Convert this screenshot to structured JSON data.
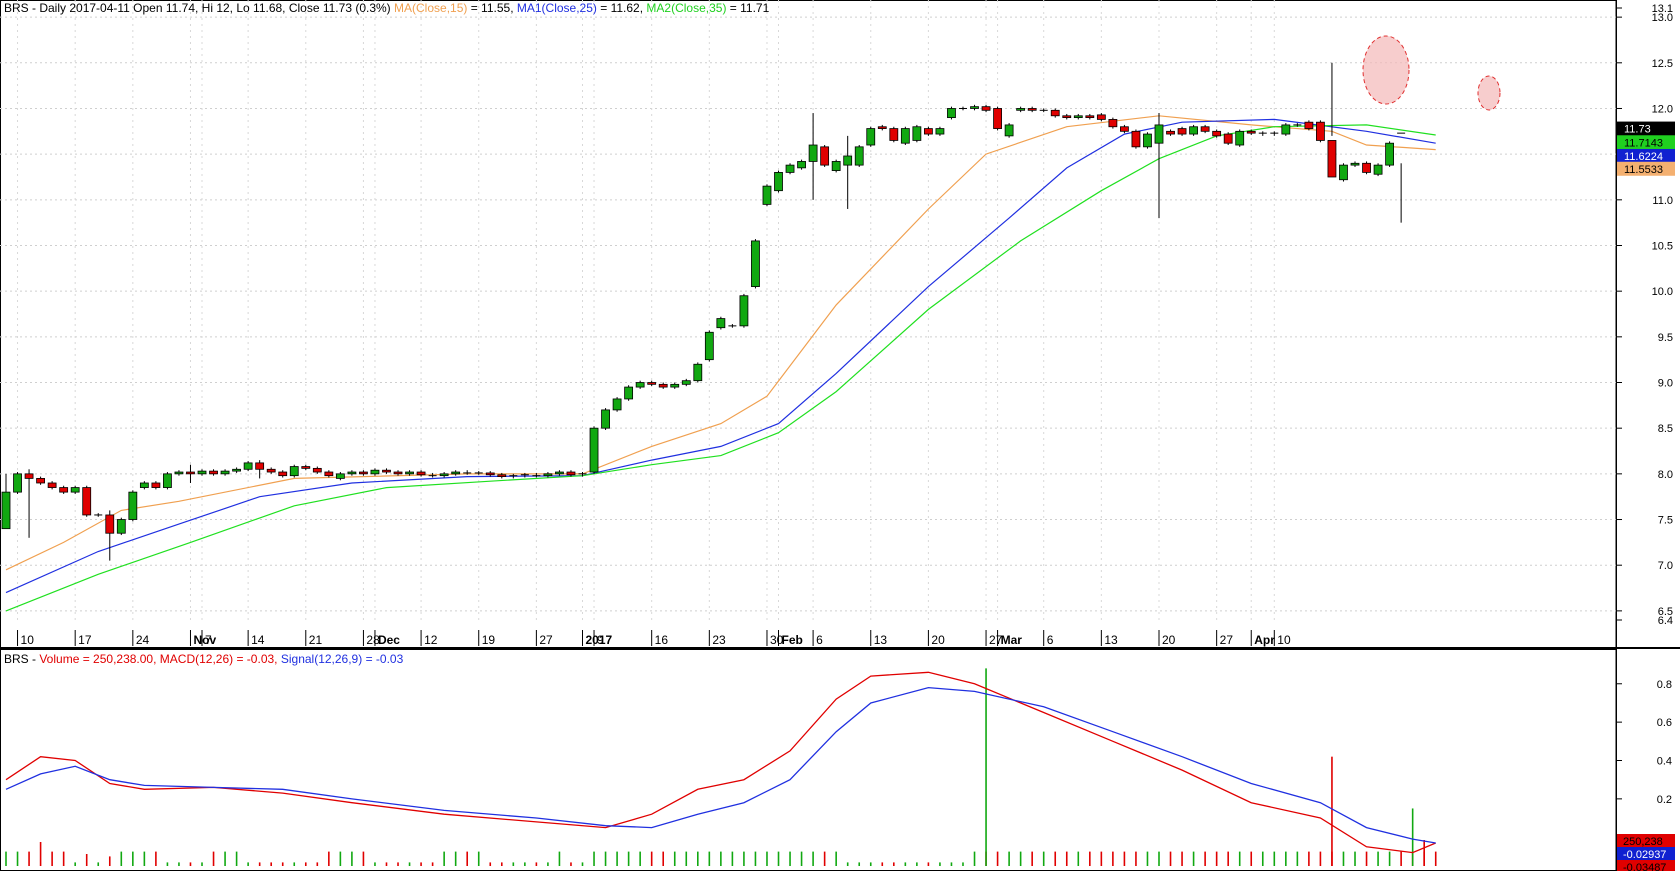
{
  "header": {
    "symbol": "BRS",
    "info": "BRS - Daily 2017-04-11 Open 11.74, Hi 12, Lo 11.68, Close 11.73 (0.3%)",
    "ma_label": "MA(Close,15)",
    "ma_value": " = 11.55, ",
    "ma1_label": "MA1(Close,25)",
    "ma1_value": " = 11.62, ",
    "ma2_label": "MA2(Close,35)",
    "ma2_value": " = 11.71"
  },
  "lower_header": {
    "prefix": "BRS - ",
    "volume": "Volume = 250,238.00, ",
    "macd": "MACD(12,26) = -0.03, ",
    "signal": "Signal(12,26,9) = -0.03"
  },
  "colors": {
    "up": "#11a811",
    "down": "#e00000",
    "ma": "#f0a050",
    "ma1": "#2030e0",
    "ma2": "#20e020",
    "macd": "#e00000",
    "signal": "#2030e0"
  },
  "price_axis_labels": [
    "13.1",
    "13.0",
    "12.5",
    "12.0",
    "11.5",
    "11.0",
    "10.5",
    "10.0",
    "9.5",
    "9.0",
    "8.5",
    "8.0",
    "7.5",
    "7.0",
    "6.5",
    "6.4"
  ],
  "price_tags": [
    {
      "label": "11.73",
      "price": 11.78,
      "bg": "#000000",
      "fg": "#ffffff"
    },
    {
      "label": "11.7143",
      "price": 11.63,
      "bg": "#20d020",
      "fg": "#000000"
    },
    {
      "label": "11.6224",
      "price": 11.48,
      "bg": "#1020d0",
      "fg": "#ffffff"
    },
    {
      "label": "11.5533",
      "price": 11.34,
      "bg": "#f4b070",
      "fg": "#000000"
    }
  ],
  "macd_axis_labels": [
    "0.8",
    "0.6",
    "0.4",
    "0.2"
  ],
  "macd_tags": [
    {
      "label": "250,238",
      "value": -0.0,
      "bg": "#e00000",
      "fg": "#000000"
    },
    {
      "label": "-0.02937",
      "value": -0.07,
      "bg": "#1020d0",
      "fg": "#ffffff"
    },
    {
      "label": "-0.03487",
      "value": -0.14,
      "bg": "#e00000",
      "fg": "#000000"
    }
  ],
  "date_labels": [
    "10",
    "17",
    "24",
    "Nov",
    "7",
    "14",
    "21",
    "28",
    "Dec",
    "12",
    "19",
    "27",
    "2017",
    "9",
    "16",
    "23",
    "30",
    "Feb",
    "6",
    "13",
    "20",
    "27",
    "Mar",
    "6",
    "13",
    "20",
    "27",
    "Apr",
    "10"
  ],
  "chart_data": {
    "type": "candlestick",
    "ticker": "BRS",
    "ylim": [
      6.4,
      13.1
    ],
    "candles": [
      [
        7.4,
        7.8
      ],
      [
        7.8,
        8.0
      ],
      [
        8.0,
        7.95
      ],
      [
        7.95,
        7.9
      ],
      [
        7.9,
        7.85
      ],
      [
        7.85,
        7.8
      ],
      [
        7.8,
        7.85
      ],
      [
        7.85,
        7.55
      ],
      [
        7.55,
        7.55
      ],
      [
        7.55,
        7.35
      ],
      [
        7.35,
        7.5
      ],
      [
        7.5,
        7.8
      ],
      [
        7.85,
        7.9
      ],
      [
        7.9,
        7.85
      ],
      [
        7.85,
        8.0
      ],
      [
        8.0,
        8.02
      ],
      [
        8.02,
        8.0
      ],
      [
        8.0,
        8.03
      ],
      [
        8.03,
        8.0
      ],
      [
        8.0,
        8.03
      ],
      [
        8.03,
        8.05
      ],
      [
        8.05,
        8.12
      ],
      [
        8.12,
        8.05
      ],
      [
        8.05,
        8.02
      ],
      [
        8.02,
        7.98
      ],
      [
        7.98,
        8.08
      ],
      [
        8.08,
        8.06
      ],
      [
        8.06,
        8.02
      ],
      [
        8.02,
        7.98
      ],
      [
        7.95,
        8.0
      ],
      [
        8.0,
        8.02
      ],
      [
        8.02,
        8.0
      ],
      [
        8.0,
        8.04
      ],
      [
        8.04,
        8.02
      ],
      [
        8.02,
        8.0
      ],
      [
        8.0,
        8.02
      ],
      [
        8.02,
        7.99
      ],
      [
        7.99,
        7.98
      ],
      [
        7.98,
        8.0
      ],
      [
        8.0,
        8.02
      ],
      [
        8.02,
        8.01
      ],
      [
        8.01,
        8.01
      ],
      [
        8.01,
        7.99
      ],
      [
        7.99,
        7.97
      ],
      [
        7.97,
        7.98
      ],
      [
        7.98,
        7.99
      ],
      [
        7.99,
        7.98
      ],
      [
        7.98,
        8.0
      ],
      [
        8.0,
        8.02
      ],
      [
        8.02,
        7.99
      ],
      [
        7.99,
        8.0
      ],
      [
        8.02,
        8.5
      ],
      [
        8.5,
        8.7
      ],
      [
        8.7,
        8.82
      ],
      [
        8.82,
        8.95
      ],
      [
        8.95,
        9.0
      ],
      [
        9.0,
        8.98
      ],
      [
        8.98,
        8.95
      ],
      [
        8.95,
        8.98
      ],
      [
        8.98,
        9.02
      ],
      [
        9.02,
        9.2
      ],
      [
        9.25,
        9.55
      ],
      [
        9.6,
        9.7
      ],
      [
        9.62,
        9.62
      ],
      [
        9.62,
        9.95
      ],
      [
        10.05,
        10.55
      ],
      [
        10.95,
        11.15
      ],
      [
        11.1,
        11.3
      ],
      [
        11.3,
        11.38
      ],
      [
        11.35,
        11.42
      ],
      [
        11.42,
        11.6
      ],
      [
        11.58,
        11.38
      ],
      [
        11.32,
        11.42
      ],
      [
        11.38,
        11.48
      ],
      [
        11.38,
        11.58
      ],
      [
        11.6,
        11.78
      ],
      [
        11.8,
        11.78
      ],
      [
        11.78,
        11.65
      ],
      [
        11.62,
        11.78
      ],
      [
        11.65,
        11.8
      ],
      [
        11.78,
        11.72
      ],
      [
        11.72,
        11.78
      ],
      [
        11.9,
        12.0
      ],
      [
        12.0,
        12.0
      ],
      [
        12.0,
        12.02
      ],
      [
        12.02,
        11.98
      ],
      [
        12.0,
        11.78
      ],
      [
        11.7,
        11.82
      ],
      [
        11.98,
        12.0
      ],
      [
        12.0,
        11.98
      ],
      [
        11.98,
        11.98
      ],
      [
        11.98,
        11.92
      ],
      [
        11.92,
        11.9
      ],
      [
        11.9,
        11.92
      ],
      [
        11.92,
        11.9
      ],
      [
        11.93,
        11.88
      ],
      [
        11.88,
        11.8
      ],
      [
        11.8,
        11.75
      ],
      [
        11.75,
        11.58
      ],
      [
        11.58,
        11.72
      ],
      [
        11.62,
        11.82
      ],
      [
        11.75,
        11.72
      ],
      [
        11.78,
        11.72
      ],
      [
        11.72,
        11.8
      ],
      [
        11.8,
        11.75
      ],
      [
        11.75,
        11.7
      ],
      [
        11.72,
        11.62
      ],
      [
        11.6,
        11.75
      ],
      [
        11.75,
        11.73
      ],
      [
        11.72,
        11.73
      ],
      [
        11.72,
        11.73
      ],
      [
        11.72,
        11.82
      ],
      [
        11.82,
        11.82
      ],
      [
        11.85,
        11.78
      ],
      [
        11.85,
        11.65
      ],
      [
        11.65,
        11.25
      ],
      [
        11.22,
        11.38
      ],
      [
        11.38,
        11.4
      ],
      [
        11.4,
        11.3
      ],
      [
        11.28,
        11.38
      ],
      [
        11.38,
        11.62
      ],
      [
        11.74,
        11.73
      ]
    ],
    "wicks": [
      [
        0,
        7.4,
        8.0
      ],
      [
        2,
        7.3,
        8.05
      ],
      [
        9,
        7.05,
        7.6
      ],
      [
        16,
        7.9,
        8.1
      ],
      [
        22,
        7.95,
        8.15
      ],
      [
        70,
        11.0,
        11.95
      ],
      [
        73,
        10.9,
        11.7
      ],
      [
        100,
        10.8,
        11.95
      ],
      [
        115,
        11.7,
        12.5
      ],
      [
        121,
        10.75,
        11.4
      ]
    ],
    "series": [
      {
        "name": "MA(Close,15)",
        "anchors": [
          [
            0,
            6.95
          ],
          [
            5,
            7.25
          ],
          [
            10,
            7.6
          ],
          [
            15,
            7.7
          ],
          [
            25,
            7.95
          ],
          [
            40,
            8.0
          ],
          [
            50,
            8.0
          ],
          [
            56,
            8.3
          ],
          [
            62,
            8.55
          ],
          [
            66,
            8.85
          ],
          [
            72,
            9.85
          ],
          [
            80,
            10.9
          ],
          [
            85,
            11.5
          ],
          [
            92,
            11.8
          ],
          [
            100,
            11.92
          ],
          [
            108,
            11.82
          ],
          [
            115,
            11.75
          ],
          [
            118,
            11.6
          ],
          [
            124,
            11.55
          ]
        ]
      },
      {
        "name": "MA1(Close,25)",
        "anchors": [
          [
            0,
            6.7
          ],
          [
            8,
            7.15
          ],
          [
            15,
            7.45
          ],
          [
            22,
            7.75
          ],
          [
            30,
            7.9
          ],
          [
            40,
            7.97
          ],
          [
            50,
            7.98
          ],
          [
            56,
            8.15
          ],
          [
            62,
            8.3
          ],
          [
            67,
            8.55
          ],
          [
            72,
            9.1
          ],
          [
            80,
            10.05
          ],
          [
            87,
            10.8
          ],
          [
            92,
            11.35
          ],
          [
            97,
            11.72
          ],
          [
            102,
            11.85
          ],
          [
            110,
            11.88
          ],
          [
            118,
            11.75
          ],
          [
            124,
            11.62
          ]
        ]
      },
      {
        "name": "MA2(Close,35)",
        "anchors": [
          [
            0,
            6.5
          ],
          [
            8,
            6.9
          ],
          [
            16,
            7.25
          ],
          [
            25,
            7.65
          ],
          [
            33,
            7.85
          ],
          [
            42,
            7.92
          ],
          [
            50,
            7.98
          ],
          [
            56,
            8.1
          ],
          [
            62,
            8.2
          ],
          [
            67,
            8.45
          ],
          [
            72,
            8.9
          ],
          [
            80,
            9.8
          ],
          [
            88,
            10.55
          ],
          [
            95,
            11.1
          ],
          [
            100,
            11.45
          ],
          [
            105,
            11.7
          ],
          [
            110,
            11.8
          ],
          [
            118,
            11.82
          ],
          [
            124,
            11.71
          ]
        ]
      }
    ],
    "volume": [
      0.12,
      0.12,
      0.12,
      0.2,
      0.12,
      0.12,
      0.03,
      0.1,
      0.03,
      0.08,
      0.12,
      0.12,
      0.12,
      0.12,
      0.03,
      0.03,
      0.03,
      0.03,
      0.12,
      0.12,
      0.12,
      0.03,
      0.03,
      0.03,
      0.03,
      0.03,
      0.03,
      0.03,
      0.12,
      0.12,
      0.12,
      0.12,
      0.03,
      0.03,
      0.03,
      0.03,
      0.03,
      0.03,
      0.12,
      0.12,
      0.12,
      0.12,
      0.03,
      0.03,
      0.03,
      0.03,
      0.03,
      0.03,
      0.12,
      0.03,
      0.03,
      0.12,
      0.12,
      0.12,
      0.12,
      0.12,
      0.12,
      0.12,
      0.12,
      0.12,
      0.12,
      0.12,
      0.12,
      0.12,
      0.12,
      0.12,
      0.12,
      0.12,
      0.12,
      0.12,
      0.12,
      0.12,
      0.12,
      0.03,
      0.03,
      0.03,
      0.03,
      0.03,
      0.03,
      0.03,
      0.03,
      0.03,
      0.03,
      0.03,
      0.12,
      0.12,
      0.12,
      0.12,
      0.12,
      0.12,
      0.12,
      0.12,
      0.12,
      0.12,
      0.12,
      0.12,
      0.12,
      0.12,
      0.12,
      0.12,
      0.12,
      0.12,
      0.12,
      0.12,
      0.12,
      0.12,
      0.12,
      0.12,
      0.12,
      0.12,
      0.12,
      0.12,
      0.12,
      0.12,
      0.12,
      0.12,
      0.12,
      0.12,
      0.12,
      0.12,
      0.12,
      0.12,
      0.12,
      0.12,
      0.12
    ],
    "volume_highlights": [
      [
        85,
        0.88,
        "up"
      ],
      [
        115,
        0.42,
        "down"
      ],
      [
        122,
        0.15,
        "up"
      ],
      [
        123,
        0.0,
        "down"
      ]
    ],
    "macd": [
      [
        0,
        0.3
      ],
      [
        3,
        0.42
      ],
      [
        6,
        0.4
      ],
      [
        9,
        0.28
      ],
      [
        12,
        0.25
      ],
      [
        18,
        0.26
      ],
      [
        24,
        0.23
      ],
      [
        30,
        0.18
      ],
      [
        38,
        0.12
      ],
      [
        46,
        0.08
      ],
      [
        52,
        0.05
      ],
      [
        56,
        0.12
      ],
      [
        60,
        0.25
      ],
      [
        64,
        0.3
      ],
      [
        68,
        0.45
      ],
      [
        72,
        0.72
      ],
      [
        75,
        0.84
      ],
      [
        80,
        0.86
      ],
      [
        84,
        0.8
      ],
      [
        90,
        0.65
      ],
      [
        96,
        0.5
      ],
      [
        102,
        0.35
      ],
      [
        108,
        0.18
      ],
      [
        114,
        0.1
      ],
      [
        118,
        -0.05
      ],
      [
        122,
        -0.08
      ],
      [
        124,
        -0.03
      ]
    ],
    "signal": [
      [
        0,
        0.25
      ],
      [
        3,
        0.33
      ],
      [
        6,
        0.37
      ],
      [
        9,
        0.3
      ],
      [
        12,
        0.27
      ],
      [
        18,
        0.26
      ],
      [
        24,
        0.25
      ],
      [
        30,
        0.2
      ],
      [
        38,
        0.14
      ],
      [
        46,
        0.1
      ],
      [
        52,
        0.06
      ],
      [
        56,
        0.05
      ],
      [
        60,
        0.12
      ],
      [
        64,
        0.18
      ],
      [
        68,
        0.3
      ],
      [
        72,
        0.55
      ],
      [
        75,
        0.7
      ],
      [
        80,
        0.78
      ],
      [
        84,
        0.76
      ],
      [
        90,
        0.68
      ],
      [
        96,
        0.55
      ],
      [
        102,
        0.42
      ],
      [
        108,
        0.28
      ],
      [
        114,
        0.18
      ],
      [
        118,
        0.05
      ],
      [
        122,
        -0.01
      ],
      [
        124,
        -0.03
      ]
    ],
    "macd_ylim": [
      -0.15,
      0.95
    ]
  }
}
